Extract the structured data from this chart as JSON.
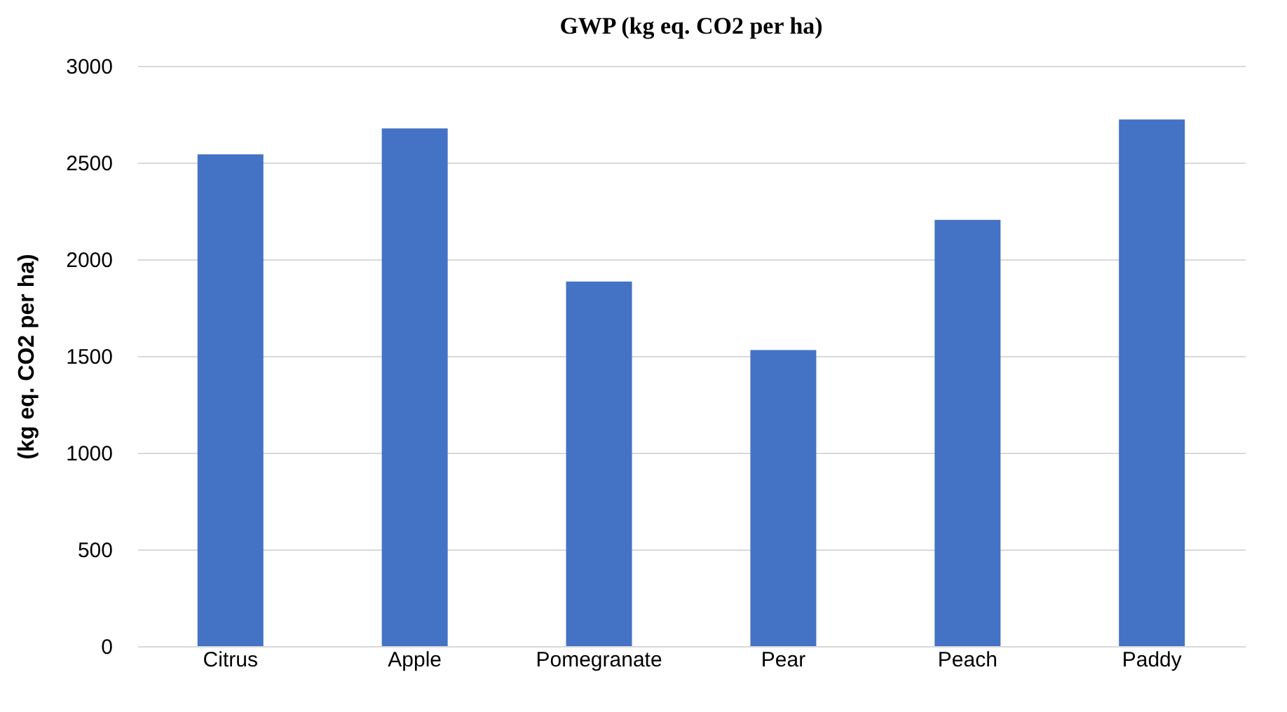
{
  "chart_data": {
    "type": "bar",
    "title": "GWP (kg eq. CO2 per ha)",
    "ylabel": "(kg eq. CO2 per ha)",
    "categories": [
      "Citrus",
      "Apple",
      "Pomegranate",
      "Pear",
      "Peach",
      "Paddy"
    ],
    "values": [
      2543,
      2677,
      1885,
      1531,
      2204,
      2723
    ],
    "color": "#4472c4",
    "ylim": [
      0,
      3000
    ],
    "yticks": [
      0,
      500,
      1000,
      1500,
      2000,
      2500,
      3000
    ],
    "grid": "y"
  }
}
